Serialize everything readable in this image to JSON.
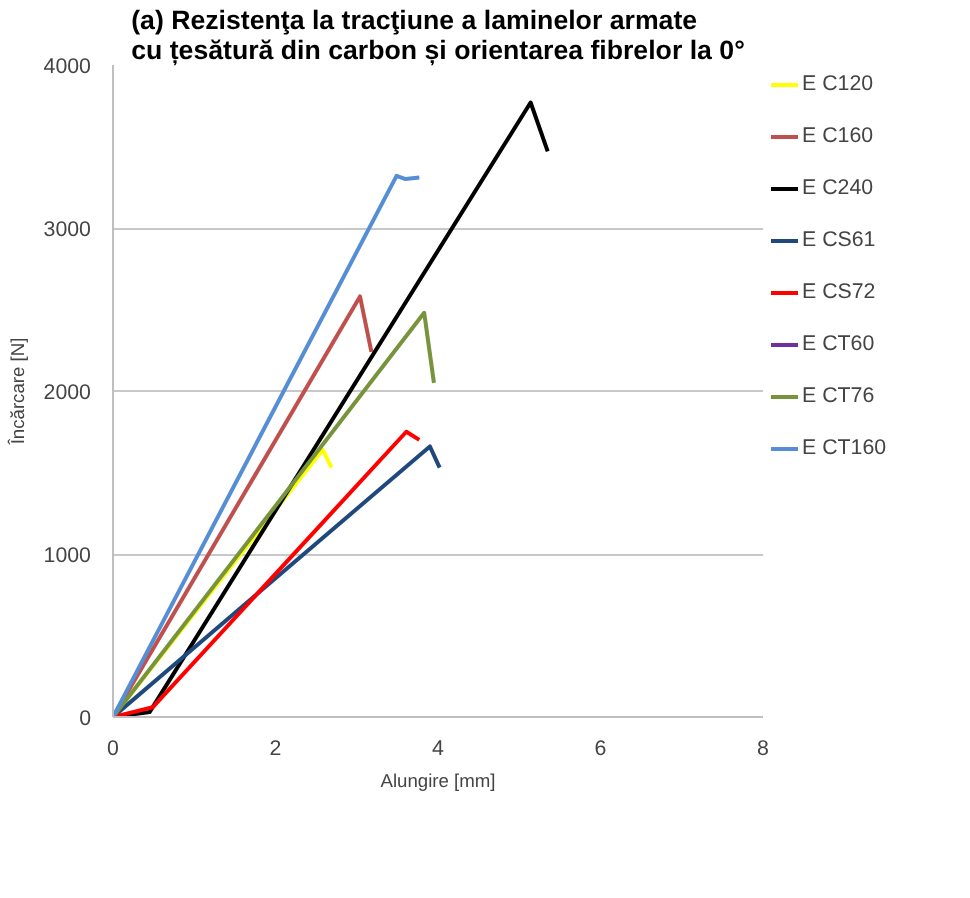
{
  "chart_data": {
    "type": "line",
    "title": "(a) Rezistenţa la tracţiune  a laminelor  armate\ncu țesătură din carbon și orientarea fibrelor la 0°",
    "xlabel": "Alungire [mm]",
    "ylabel": "Încărcare [N]",
    "xlim": [
      0,
      8
    ],
    "xticks": [
      0,
      2,
      4,
      6,
      8
    ],
    "ylim": [
      0,
      4000
    ],
    "yticks": [
      0,
      1000,
      2000,
      3000,
      4000
    ],
    "grid": "y",
    "legend": "right",
    "line_style": "solid",
    "marker": "none",
    "series": [
      {
        "name": "E C120",
        "color": "#ffff00",
        "x": [
          0,
          2.58,
          2.69
        ],
        "values": [
          0,
          1640,
          1530
        ]
      },
      {
        "name": "E C160",
        "color": "#c0504d",
        "x": [
          0,
          3.04,
          3.18
        ],
        "values": [
          0,
          2580,
          2240
        ]
      },
      {
        "name": "E C240",
        "color": "#000000",
        "x": [
          0,
          0.45,
          5.14,
          5.35
        ],
        "values": [
          0,
          30,
          3770,
          3470
        ]
      },
      {
        "name": "E CS61",
        "color": "#1f497d",
        "x": [
          0,
          3.9,
          4.02
        ],
        "values": [
          0,
          1660,
          1530
        ]
      },
      {
        "name": "E CS72",
        "color": "#ff0000",
        "x": [
          0,
          0.49,
          3.61,
          3.77
        ],
        "values": [
          0,
          60,
          1750,
          1700
        ]
      },
      {
        "name": "E CT60",
        "color": "#7030a0"
      },
      {
        "name": "E CT76",
        "color": "#77933c",
        "x": [
          0,
          3.83,
          3.95
        ],
        "values": [
          0,
          2480,
          2050
        ]
      },
      {
        "name": "E CT160",
        "color": "#558ed5",
        "x": [
          0,
          3.49,
          3.6,
          3.77
        ],
        "values": [
          0,
          3320,
          3300,
          3310
        ]
      }
    ]
  }
}
